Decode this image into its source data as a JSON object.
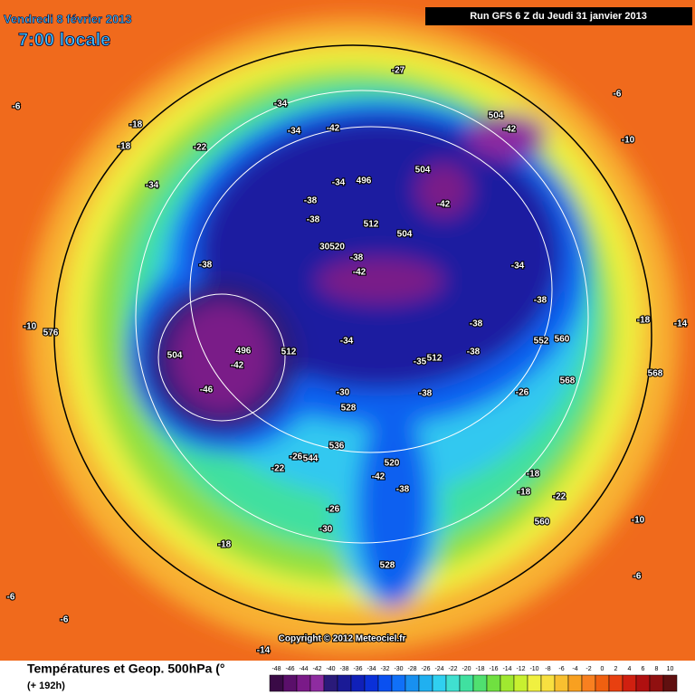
{
  "header": {
    "date": "Vendredi 8 février 2013",
    "time": "7:00 locale",
    "run": "Run GFS 6 Z du Jeudi 31 janvier 2013"
  },
  "footer": {
    "title": "Températures et Geop. 500hPa (°",
    "range": "(+ 192h)",
    "copyright": "Copyright © 2012 Meteociel.fr"
  },
  "colorbar": {
    "ticks": [
      "-48",
      "-46",
      "-44",
      "-42",
      "-40",
      "-38",
      "-36",
      "-34",
      "-32",
      "-30",
      "-28",
      "-26",
      "-24",
      "-22",
      "-20",
      "-18",
      "-16",
      "-14",
      "-12",
      "-10",
      "-8",
      "-6",
      "-4",
      "-2",
      "0",
      "2",
      "4",
      "6",
      "8",
      "10"
    ],
    "colors": [
      "#3a0a46",
      "#5a0f6a",
      "#7a1a88",
      "#8e2ca0",
      "#2a1a7a",
      "#1a1a96",
      "#1020b8",
      "#0a30d8",
      "#0a50f0",
      "#1070f8",
      "#1890f0",
      "#20b0f0",
      "#30d0f0",
      "#40e0d0",
      "#40e0a0",
      "#50e070",
      "#70e040",
      "#a0e830",
      "#c8f030",
      "#f0f040",
      "#f8e040",
      "#f8c030",
      "#f8a020",
      "#f88020",
      "#f06010",
      "#e84010",
      "#d02010",
      "#b01010",
      "#901010",
      "#601010"
    ]
  },
  "map": {
    "labels": [
      "-34",
      "-34",
      "-42",
      "504",
      "-42",
      "-27",
      "-6",
      "-6",
      "-18",
      "-18",
      "-22",
      "-34",
      "-34",
      "496",
      "504",
      "-38",
      "-38",
      "512",
      "-42",
      "504",
      "-10",
      "30520",
      "-38",
      "-42",
      "-38",
      "-34",
      "-38",
      "-18",
      "-14",
      "-10",
      "576",
      "504",
      "496",
      "-42",
      "512",
      "-34",
      "-38",
      "-38",
      "552",
      "560",
      "-35",
      "512",
      "568",
      "568",
      "-46",
      "-30",
      "-38",
      "-26",
      "528",
      "536",
      "-26",
      "544",
      "-22",
      "520",
      "-42",
      "-38",
      "-18",
      "-18",
      "-22",
      "-26",
      "-30",
      "-18",
      "560",
      "-10",
      "528",
      "-6",
      "-6",
      "-6",
      "-14"
    ]
  }
}
